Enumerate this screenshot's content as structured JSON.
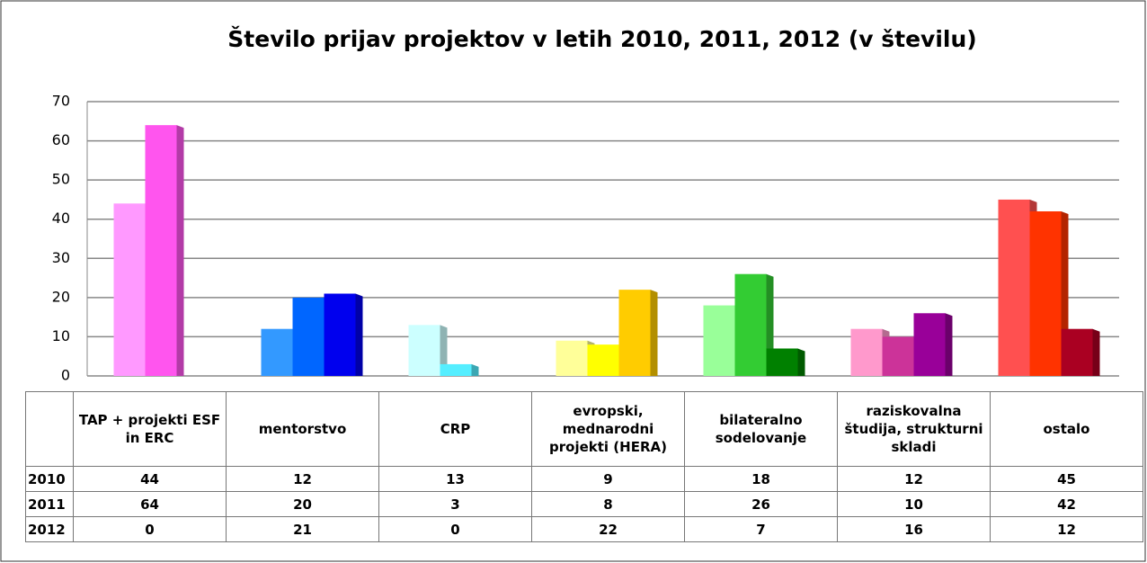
{
  "chart_data": {
    "type": "bar",
    "title": "Število prijav projektov v letih 2010, 2011, 2012 (v številu)",
    "categories": [
      "TAP + projekti ESF in ERC",
      "mentorstvo",
      "CRP",
      "evropski, mednarodni projekti (HERA)",
      "bilateralno sodelovanje",
      "raziskovalna študija, strukturni skladi",
      "ostalo"
    ],
    "series": [
      {
        "name": "2010",
        "values": [
          44,
          12,
          13,
          9,
          18,
          12,
          45
        ],
        "colors": [
          "#ff99ff",
          "#3399ff",
          "#ccffff",
          "#ffff99",
          "#99ff99",
          "#ff99cc",
          "#ff5050"
        ]
      },
      {
        "name": "2011",
        "values": [
          64,
          20,
          3,
          8,
          26,
          10,
          42
        ],
        "colors": [
          "#ff55ee",
          "#0066ff",
          "#55eeff",
          "#ffff00",
          "#33cc33",
          "#cc3399",
          "#ff3300"
        ]
      },
      {
        "name": "2012",
        "values": [
          0,
          21,
          0,
          22,
          7,
          16,
          12
        ],
        "colors": [
          "#cc44cc",
          "#0000ee",
          "#33bbcc",
          "#ffcc00",
          "#008000",
          "#990099",
          "#aa0022"
        ]
      }
    ],
    "ylim": [
      0,
      70
    ],
    "yticks": [
      0,
      10,
      20,
      30,
      40,
      50,
      60,
      70
    ],
    "grid": true
  }
}
